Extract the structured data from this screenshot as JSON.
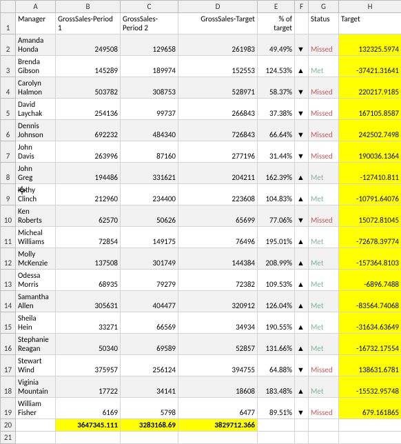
{
  "colHeaders": [
    "A",
    "B",
    "C",
    "D",
    "E",
    "F",
    "G",
    "H"
  ],
  "headerRow": [
    "Manager",
    "GrossSales-Period 1",
    "GrossSales-Period 2",
    "GrossSales-Target",
    "% of target",
    "",
    "Status",
    "Target"
  ],
  "rows": [
    {
      "n": 2,
      "band": true,
      "mgr": "Amanda Honda",
      "p1": "249508",
      "p2": "129658",
      "tgt": "261983",
      "pct": "49.49%",
      "arr": "▼",
      "status": "Missed",
      "h": "132325.5974"
    },
    {
      "n": 3,
      "band": false,
      "mgr": "Brenda Gibson",
      "p1": "145289",
      "p2": "189974",
      "tgt": "152553",
      "pct": "124.53%",
      "arr": "▲",
      "status": "Met",
      "h": "-37421.31641"
    },
    {
      "n": 4,
      "band": true,
      "mgr": "Carolyn Halmon",
      "p1": "503782",
      "p2": "308753",
      "tgt": "528971",
      "pct": "58.37%",
      "arr": "▼",
      "status": "Missed",
      "h": "220217.9185"
    },
    {
      "n": 5,
      "band": false,
      "mgr": "David Laychak",
      "p1": "254136",
      "p2": "99737",
      "tgt": "266843",
      "pct": "37.38%",
      "arr": "▼",
      "status": "Missed",
      "h": "167105.8587"
    },
    {
      "n": 6,
      "band": true,
      "mgr": "Dennis Johnson",
      "p1": "692232",
      "p2": "484340",
      "tgt": "726843",
      "pct": "66.64%",
      "arr": "▼",
      "status": "Missed",
      "h": "242502.7498"
    },
    {
      "n": 7,
      "band": false,
      "mgr": "John Davis",
      "p1": "263996",
      "p2": "87160",
      "tgt": "277196",
      "pct": "31.44%",
      "arr": "▼",
      "status": "Missed",
      "h": "190036.1364"
    },
    {
      "n": 8,
      "band": true,
      "mgr": "John Greg",
      "p1": "194486",
      "p2": "331621",
      "tgt": "204211",
      "pct": "162.39%",
      "arr": "▲",
      "status": "Met",
      "h": "-127410.811"
    },
    {
      "n": 9,
      "band": false,
      "mgr": "Kathy Clinch",
      "p1": "212960",
      "p2": "234400",
      "tgt": "223608",
      "pct": "104.83%",
      "arr": "▲",
      "status": "Met",
      "h": "-10791.64076",
      "cursor": true
    },
    {
      "n": 10,
      "band": true,
      "mgr": "Ken Roberts",
      "p1": "62570",
      "p2": "50626",
      "tgt": "65699",
      "pct": "77.06%",
      "arr": "▼",
      "status": "Missed",
      "h": "15072.81045"
    },
    {
      "n": 11,
      "band": false,
      "mgr": "Micheal Williams",
      "p1": "72854",
      "p2": "149175",
      "tgt": "76496",
      "pct": "195.01%",
      "arr": "▲",
      "status": "Met",
      "h": "-72678.39774"
    },
    {
      "n": 12,
      "band": true,
      "mgr": "Molly McKenzie",
      "p1": "137508",
      "p2": "301749",
      "tgt": "144384",
      "pct": "208.99%",
      "arr": "▲",
      "status": "Met",
      "h": "-157364.8103"
    },
    {
      "n": 13,
      "band": false,
      "mgr": "Odessa Morris",
      "p1": "68935",
      "p2": "79279",
      "tgt": "72382",
      "pct": "109.53%",
      "arr": "▲",
      "status": "Met",
      "h": "-6896.7488"
    },
    {
      "n": 14,
      "band": true,
      "mgr": "Samantha Allen",
      "p1": "305631",
      "p2": "404477",
      "tgt": "320912",
      "pct": "126.04%",
      "arr": "▲",
      "status": "Met",
      "h": "-83564.74068"
    },
    {
      "n": 15,
      "band": false,
      "mgr": "Sheila Hein",
      "p1": "33271",
      "p2": "66569",
      "tgt": "34934",
      "pct": "190.55%",
      "arr": "▲",
      "status": "Met",
      "h": "-31634.63649"
    },
    {
      "n": 16,
      "band": true,
      "mgr": "Stephanie Reagan",
      "p1": "50340",
      "p2": "69589",
      "tgt": "52857",
      "pct": "131.66%",
      "arr": "▲",
      "status": "Met",
      "h": "-16732.17554"
    },
    {
      "n": 17,
      "band": false,
      "mgr": "Stewart Wind",
      "p1": "375957",
      "p2": "256124",
      "tgt": "394755",
      "pct": "64.88%",
      "arr": "▼",
      "status": "Missed",
      "h": "138631.6781"
    },
    {
      "n": 18,
      "band": true,
      "mgr": "Viginia Mountain",
      "p1": "17722",
      "p2": "34141",
      "tgt": "18608",
      "pct": "183.48%",
      "arr": "▲",
      "status": "Met",
      "h": "-15532.95748"
    },
    {
      "n": 19,
      "band": false,
      "mgr": "William Fisher",
      "p1": "6169",
      "p2": "5798",
      "tgt": "6477",
      "pct": "89.51%",
      "arr": "▼",
      "status": "Missed",
      "h": "679.161865"
    }
  ],
  "totals": {
    "n": 20,
    "p1": "3647345.111",
    "p2": "3283168.69",
    "tgt": "3829712.366"
  },
  "emptyRow": 21,
  "colors": {
    "band": "#f2f2f2",
    "yellow": "#ffff00",
    "met": "#7fb59a",
    "missed": "#c55a5a",
    "grid": "#d4d4d4",
    "header": "#f0f0f0"
  }
}
